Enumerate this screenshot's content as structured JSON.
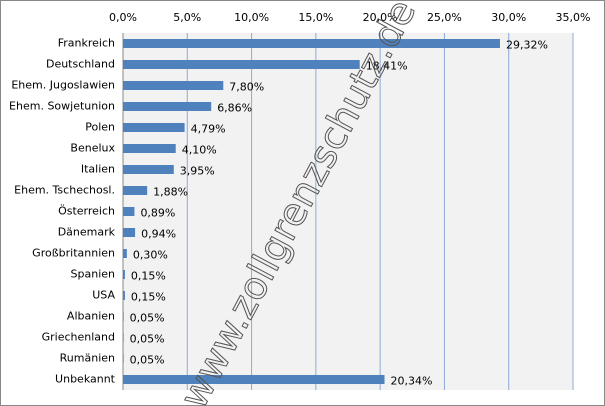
{
  "chart_data": {
    "type": "bar",
    "orientation": "horizontal",
    "categories": [
      "Frankreich",
      "Deutschland",
      "Ehem. Jugoslawien",
      "Ehem. Sowjetunion",
      "Polen",
      "Benelux",
      "Italien",
      "Ehem. Tschechosl.",
      "Österreich",
      "Dänemark",
      "Großbritannien",
      "Spanien",
      "USA",
      "Albanien",
      "Griechenland",
      "Rumänien",
      "Unbekannt"
    ],
    "values": [
      29.32,
      18.41,
      7.8,
      6.86,
      4.79,
      4.1,
      3.95,
      1.88,
      0.89,
      0.94,
      0.3,
      0.15,
      0.15,
      0.05,
      0.05,
      0.05,
      20.34
    ],
    "value_labels": [
      "29,32%",
      "18,41%",
      "7,80%",
      "6,86%",
      "4,79%",
      "4,10%",
      "3,95%",
      "1,88%",
      "0,89%",
      "0,94%",
      "0,30%",
      "0,15%",
      "0,15%",
      "0,05%",
      "0,05%",
      "0,05%",
      "20,34%"
    ],
    "color": "#4f81bd",
    "xlim": [
      0,
      35
    ],
    "xticks": [
      {
        "value": 0,
        "label": "0,0%"
      },
      {
        "value": 5,
        "label": "5,0%"
      },
      {
        "value": 10,
        "label": "10,0%"
      },
      {
        "value": 15,
        "label": "15,0%"
      },
      {
        "value": 20,
        "label": "20,0%"
      },
      {
        "value": 25,
        "label": "25,0%"
      },
      {
        "value": 30,
        "label": "30,0%"
      },
      {
        "value": 35,
        "label": "35,0%"
      }
    ],
    "grid": true,
    "annotations": [
      "www.zollgrenzschutz.de"
    ]
  }
}
